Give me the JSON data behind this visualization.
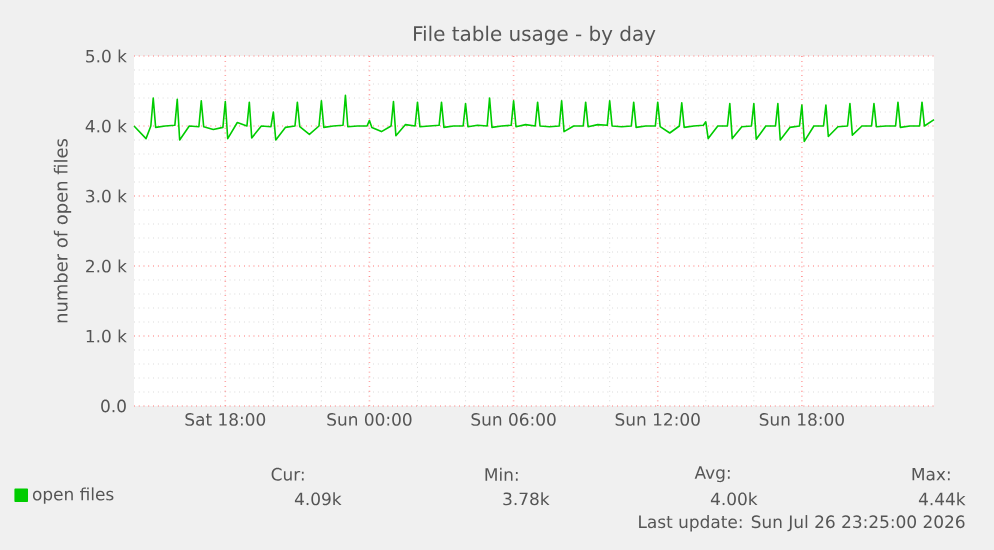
{
  "chart_data": {
    "type": "line",
    "title": "File table usage - by day",
    "ylabel": "number of open files",
    "x": [
      "2026-07-25T14:12",
      "2026-07-25T14:42",
      "2026-07-25T14:54",
      "2026-07-25T15:00",
      "2026-07-25T15:06",
      "2026-07-25T15:30",
      "2026-07-25T15:54",
      "2026-07-25T16:00",
      "2026-07-25T16:06",
      "2026-07-25T16:30",
      "2026-07-25T16:54",
      "2026-07-25T17:00",
      "2026-07-25T17:06",
      "2026-07-25T17:30",
      "2026-07-25T17:54",
      "2026-07-25T18:00",
      "2026-07-25T18:06",
      "2026-07-25T18:30",
      "2026-07-25T18:54",
      "2026-07-25T19:00",
      "2026-07-25T19:06",
      "2026-07-25T19:30",
      "2026-07-25T19:54",
      "2026-07-25T20:00",
      "2026-07-25T20:06",
      "2026-07-25T20:30",
      "2026-07-25T20:54",
      "2026-07-25T21:00",
      "2026-07-25T21:06",
      "2026-07-25T21:30",
      "2026-07-25T21:54",
      "2026-07-25T22:00",
      "2026-07-25T22:06",
      "2026-07-25T22:30",
      "2026-07-25T22:54",
      "2026-07-25T23:00",
      "2026-07-25T23:06",
      "2026-07-25T23:30",
      "2026-07-25T23:54",
      "2026-07-26T00:00",
      "2026-07-26T00:06",
      "2026-07-26T00:30",
      "2026-07-26T00:54",
      "2026-07-26T01:00",
      "2026-07-26T01:06",
      "2026-07-26T01:30",
      "2026-07-26T01:54",
      "2026-07-26T02:00",
      "2026-07-26T02:06",
      "2026-07-26T02:30",
      "2026-07-26T02:54",
      "2026-07-26T03:00",
      "2026-07-26T03:06",
      "2026-07-26T03:30",
      "2026-07-26T03:54",
      "2026-07-26T04:00",
      "2026-07-26T04:06",
      "2026-07-26T04:30",
      "2026-07-26T04:54",
      "2026-07-26T05:00",
      "2026-07-26T05:06",
      "2026-07-26T05:30",
      "2026-07-26T05:54",
      "2026-07-26T06:00",
      "2026-07-26T06:06",
      "2026-07-26T06:30",
      "2026-07-26T06:54",
      "2026-07-26T07:00",
      "2026-07-26T07:06",
      "2026-07-26T07:30",
      "2026-07-26T07:54",
      "2026-07-26T08:00",
      "2026-07-26T08:06",
      "2026-07-26T08:30",
      "2026-07-26T08:54",
      "2026-07-26T09:00",
      "2026-07-26T09:06",
      "2026-07-26T09:30",
      "2026-07-26T09:54",
      "2026-07-26T10:00",
      "2026-07-26T10:06",
      "2026-07-26T10:30",
      "2026-07-26T10:54",
      "2026-07-26T11:00",
      "2026-07-26T11:06",
      "2026-07-26T11:30",
      "2026-07-26T11:54",
      "2026-07-26T12:00",
      "2026-07-26T12:06",
      "2026-07-26T12:30",
      "2026-07-26T12:54",
      "2026-07-26T13:00",
      "2026-07-26T13:06",
      "2026-07-26T13:30",
      "2026-07-26T13:54",
      "2026-07-26T14:00",
      "2026-07-26T14:06",
      "2026-07-26T14:30",
      "2026-07-26T14:54",
      "2026-07-26T15:00",
      "2026-07-26T15:06",
      "2026-07-26T15:30",
      "2026-07-26T15:54",
      "2026-07-26T16:00",
      "2026-07-26T16:06",
      "2026-07-26T16:30",
      "2026-07-26T16:54",
      "2026-07-26T17:00",
      "2026-07-26T17:06",
      "2026-07-26T17:30",
      "2026-07-26T17:54",
      "2026-07-26T18:00",
      "2026-07-26T18:06",
      "2026-07-26T18:30",
      "2026-07-26T18:54",
      "2026-07-26T19:00",
      "2026-07-26T19:06",
      "2026-07-26T19:30",
      "2026-07-26T19:54",
      "2026-07-26T20:00",
      "2026-07-26T20:06",
      "2026-07-26T20:30",
      "2026-07-26T20:54",
      "2026-07-26T21:00",
      "2026-07-26T21:06",
      "2026-07-26T21:30",
      "2026-07-26T21:54",
      "2026-07-26T22:00",
      "2026-07-26T22:06",
      "2026-07-26T22:30",
      "2026-07-26T22:54",
      "2026-07-26T23:00",
      "2026-07-26T23:06",
      "2026-07-26T23:30"
    ],
    "series": [
      {
        "name": "open files",
        "color": "#00cc00",
        "values": [
          4.0,
          3.82,
          4.0,
          4.4,
          3.98,
          4.0,
          4.01,
          4.38,
          3.8,
          4.0,
          3.99,
          4.36,
          3.99,
          3.95,
          3.98,
          4.35,
          3.82,
          4.05,
          4.0,
          4.34,
          3.83,
          4.0,
          3.99,
          4.2,
          3.8,
          3.98,
          4.0,
          4.34,
          3.99,
          3.88,
          4.0,
          4.36,
          3.98,
          4.0,
          4.01,
          4.44,
          3.99,
          4.0,
          4.0,
          4.08,
          3.98,
          3.92,
          4.0,
          4.35,
          3.86,
          4.02,
          4.0,
          4.34,
          3.99,
          4.0,
          4.01,
          4.34,
          3.98,
          4.0,
          4.0,
          4.32,
          3.99,
          4.01,
          4.0,
          4.4,
          3.98,
          4.0,
          4.01,
          4.36,
          3.99,
          4.02,
          4.0,
          4.34,
          4.0,
          3.99,
          4.0,
          4.36,
          3.92,
          4.0,
          4.0,
          4.34,
          3.99,
          4.02,
          4.01,
          4.36,
          4.0,
          3.99,
          4.0,
          4.34,
          3.98,
          4.0,
          4.0,
          4.34,
          3.99,
          3.9,
          4.0,
          4.33,
          3.98,
          4.0,
          4.01,
          4.06,
          3.82,
          4.0,
          4.0,
          4.32,
          3.82,
          3.99,
          4.0,
          4.32,
          3.81,
          4.0,
          4.0,
          4.32,
          3.8,
          3.98,
          4.0,
          4.3,
          3.78,
          4.0,
          4.0,
          4.3,
          3.85,
          3.99,
          4.0,
          4.32,
          3.87,
          4.0,
          4.0,
          4.32,
          3.99,
          4.0,
          4.0,
          4.34,
          3.98,
          4.0,
          4.0,
          4.34,
          4.0,
          4.09
        ]
      }
    ],
    "xlim": [
      "2026-07-25T14:12",
      "2026-07-26T23:30"
    ],
    "xticks": [
      {
        "value": "2026-07-25T18:00",
        "label": "Sat 18:00"
      },
      {
        "value": "2026-07-26T00:00",
        "label": "Sun 00:00"
      },
      {
        "value": "2026-07-26T06:00",
        "label": "Sun 06:00"
      },
      {
        "value": "2026-07-26T12:00",
        "label": "Sun 12:00"
      },
      {
        "value": "2026-07-26T18:00",
        "label": "Sun 18:00"
      }
    ],
    "ylim": [
      0,
      5
    ],
    "yticks": [
      {
        "value": 0,
        "label": "0.0"
      },
      {
        "value": 1,
        "label": "1.0 k"
      },
      {
        "value": 2,
        "label": "2.0 k"
      },
      {
        "value": 3,
        "label": "3.0 k"
      },
      {
        "value": 4,
        "label": "4.0 k"
      },
      {
        "value": 5,
        "label": "5.0 k"
      }
    ],
    "grid": true,
    "legend": "bottom left",
    "line_style": "solid",
    "marker": "none",
    "annotations": [
      "Cur:",
      "Min:",
      "Avg:",
      "Max:",
      "4.09k",
      "3.78k",
      "4.00k",
      "4.44k",
      "Last update: Sun Jul 26 23:25:00 2026"
    ]
  }
}
